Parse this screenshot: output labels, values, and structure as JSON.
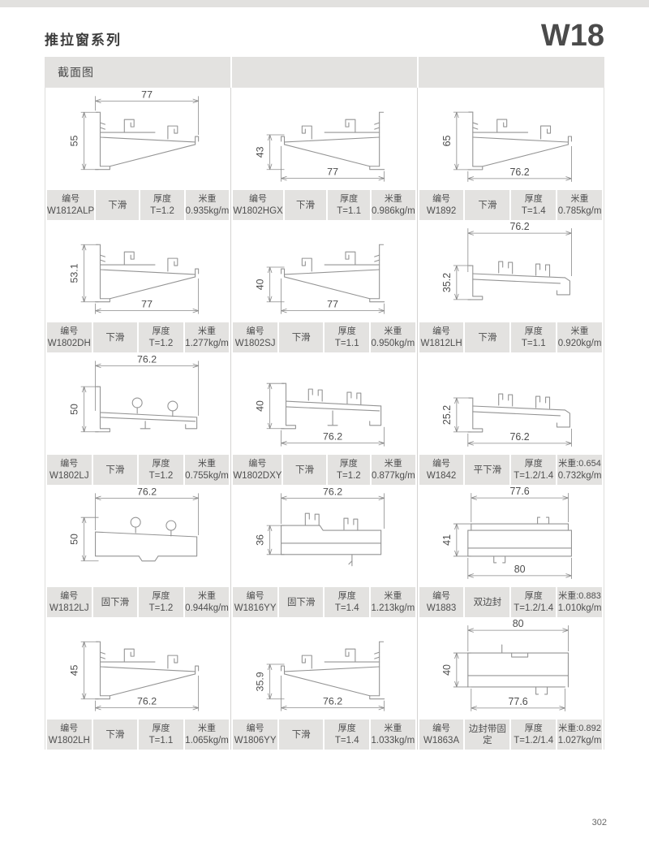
{
  "page": {
    "series_title": "推拉窗系列",
    "model": "W18",
    "page_number": "302"
  },
  "table": {
    "header": "截面图",
    "labels": {
      "code": "编号",
      "thickness": "厚度"
    },
    "cells": [
      {
        "code": "W1812ALP",
        "type": "下滑",
        "thickness": "T=1.2",
        "weight_line1": "米重",
        "weight_line2": "0.935kg/m",
        "dim_top": "77",
        "dim_left": "55",
        "dim_bottom": "",
        "shape": "sillL"
      },
      {
        "code": "W1802HGX",
        "type": "下滑",
        "thickness": "T=1.1",
        "weight_line1": "米重",
        "weight_line2": "0.986kg/m",
        "dim_top": "",
        "dim_left": "43",
        "dim_bottom": "77",
        "shape": "sillR"
      },
      {
        "code": "W1892",
        "type": "下滑",
        "thickness": "T=1.4",
        "weight_line1": "米重",
        "weight_line2": "0.785kg/m",
        "dim_top": "",
        "dim_left": "65",
        "dim_bottom": "76.2",
        "shape": "sillL"
      },
      {
        "code": "W1802DH",
        "type": "下滑",
        "thickness": "T=1.2",
        "weight_line1": "米重",
        "weight_line2": "1.277kg/m",
        "dim_top": "",
        "dim_left": "53.1",
        "dim_bottom": "77",
        "shape": "sillL"
      },
      {
        "code": "W1802SJ",
        "type": "下滑",
        "thickness": "T=1.1",
        "weight_line1": "米重",
        "weight_line2": "0.950kg/m",
        "dim_top": "",
        "dim_left": "40",
        "dim_bottom": "77",
        "shape": "sillR"
      },
      {
        "code": "W1812LH",
        "type": "下滑",
        "thickness": "T=1.1",
        "weight_line1": "米重",
        "weight_line2": "0.920kg/m",
        "dim_top": "76.2",
        "dim_left": "35.2",
        "dim_bottom": "",
        "shape": "lowRail"
      },
      {
        "code": "W1802LJ",
        "type": "下滑",
        "thickness": "T=1.2",
        "weight_line1": "米重",
        "weight_line2": "0.755kg/m",
        "dim_top": "76.2",
        "dim_left": "50",
        "dim_bottom": "",
        "shape": "rollerRail"
      },
      {
        "code": "W1802DXY",
        "type": "下滑",
        "thickness": "T=1.2",
        "weight_line1": "米重",
        "weight_line2": "0.877kg/m",
        "dim_top": "",
        "dim_left": "40",
        "dim_bottom": "76.2",
        "shape": "midRail"
      },
      {
        "code": "W1842",
        "type": "平下滑",
        "thickness": "T=1.2/1.4",
        "weight_line1": "米重:0.654",
        "weight_line2": "0.732kg/m",
        "dim_top": "",
        "dim_left": "25.2",
        "dim_bottom": "76.2",
        "shape": "lowRail"
      },
      {
        "code": "W1812LJ",
        "type": "固下滑",
        "thickness": "T=1.2",
        "weight_line1": "米重",
        "weight_line2": "0.944kg/m",
        "dim_top": "76.2",
        "dim_left": "50",
        "dim_bottom": "",
        "shape": "fixedA"
      },
      {
        "code": "W1816YY",
        "type": "固下滑",
        "thickness": "T=1.4",
        "weight_line1": "米重",
        "weight_line2": "1.213kg/m",
        "dim_top": "76.2",
        "dim_left": "36",
        "dim_bottom": "",
        "shape": "fixedB"
      },
      {
        "code": "W1883",
        "type": "双边封",
        "thickness": "T=1.2/1.4",
        "weight_line1": "米重:0.883",
        "weight_line2": "1.010kg/m",
        "dim_top": "77.6",
        "dim_left": "41",
        "dim_bottom": "80",
        "shape": "boxA"
      },
      {
        "code": "W1802LH",
        "type": "下滑",
        "thickness": "T=1.1",
        "weight_line1": "米重",
        "weight_line2": "1.065kg/m",
        "dim_top": "",
        "dim_left": "45",
        "dim_bottom": "76.2",
        "shape": "sillL"
      },
      {
        "code": "W1806YY",
        "type": "下滑",
        "thickness": "T=1.4",
        "weight_line1": "米重",
        "weight_line2": "1.033kg/m",
        "dim_top": "",
        "dim_left": "35.9",
        "dim_bottom": "76.2",
        "shape": "sillR"
      },
      {
        "code": "W1863A",
        "type": "边封带固定",
        "thickness": "T=1.2/1.4",
        "weight_line1": "米重:0.892",
        "weight_line2": "1.027kg/m",
        "dim_top": "80",
        "dim_left": "40",
        "dim_bottom": "77.6",
        "shape": "boxB"
      }
    ]
  }
}
